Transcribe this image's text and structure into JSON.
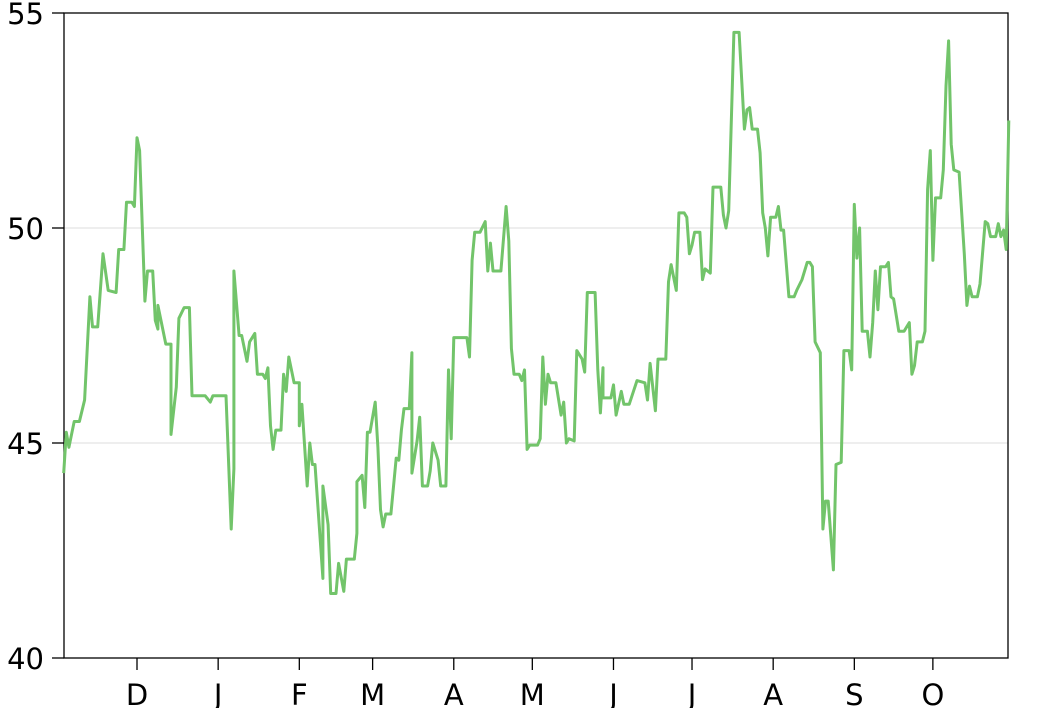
{
  "chart_data": {
    "type": "line",
    "title": "",
    "xlabel": "",
    "ylabel": "",
    "ylim": [
      40,
      55
    ],
    "yticks": [
      "40",
      "45",
      "50",
      "55"
    ],
    "xticks": [
      "D",
      "J",
      "F",
      "M",
      "A",
      "M",
      "J",
      "J",
      "A",
      "S",
      "O"
    ],
    "grid": "horizontal, light gray, at 45 and 50",
    "line_color": "#72c46a",
    "series": [
      {
        "points": [
          [
            "11-03",
            44.3
          ],
          [
            "11-04",
            45.25
          ],
          [
            "11-05",
            44.9
          ],
          [
            "11-07",
            45.5
          ],
          [
            "11-09",
            45.5
          ],
          [
            "11-11",
            46.0
          ],
          [
            "11-13",
            48.4
          ],
          [
            "11-14",
            47.7
          ],
          [
            "11-16",
            47.7
          ],
          [
            "11-18",
            49.4
          ],
          [
            "11-20",
            48.55
          ],
          [
            "11-23",
            48.5
          ],
          [
            "11-24",
            49.5
          ],
          [
            "11-26",
            49.5
          ],
          [
            "11-27",
            50.6
          ],
          [
            "11-29",
            50.6
          ],
          [
            "11-30",
            50.5
          ],
          [
            "12-01",
            52.1
          ],
          [
            "12-02",
            51.8
          ],
          [
            "12-04",
            48.3
          ],
          [
            "12-05",
            49.0
          ],
          [
            "12-07",
            49.0
          ],
          [
            "12-08",
            47.85
          ],
          [
            "12-09",
            47.65
          ],
          [
            "12-09",
            48.2
          ],
          [
            "12-12",
            47.3
          ],
          [
            "12-14",
            47.3
          ],
          [
            "12-14",
            45.2
          ],
          [
            "12-16",
            46.3
          ],
          [
            "12-17",
            47.9
          ],
          [
            "12-19",
            48.15
          ],
          [
            "12-21",
            48.15
          ],
          [
            "12-22",
            46.1
          ],
          [
            "12-27",
            46.1
          ],
          [
            "12-29",
            45.95
          ],
          [
            "12-30",
            46.1
          ],
          [
            "01-04",
            46.1
          ],
          [
            "01-06",
            43.0
          ],
          [
            "01-07",
            44.4
          ],
          [
            "01-07",
            49.0
          ],
          [
            "01-09",
            47.5
          ],
          [
            "01-10",
            47.5
          ],
          [
            "01-12",
            46.9
          ],
          [
            "01-13",
            47.35
          ],
          [
            "01-15",
            47.55
          ],
          [
            "01-16",
            46.6
          ],
          [
            "01-18",
            46.6
          ],
          [
            "01-19",
            46.5
          ],
          [
            "01-20",
            46.75
          ],
          [
            "01-21",
            45.4
          ],
          [
            "01-22",
            44.85
          ],
          [
            "01-23",
            45.3
          ],
          [
            "01-25",
            45.3
          ],
          [
            "01-26",
            46.6
          ],
          [
            "01-27",
            46.2
          ],
          [
            "01-28",
            47.0
          ],
          [
            "01-30",
            46.4
          ],
          [
            "02-01",
            46.4
          ],
          [
            "02-01",
            45.4
          ],
          [
            "02-02",
            45.9
          ],
          [
            "02-04",
            44.0
          ],
          [
            "02-05",
            45.0
          ],
          [
            "02-06",
            44.5
          ],
          [
            "02-07",
            44.5
          ],
          [
            "02-10",
            41.85
          ],
          [
            "02-10",
            44.0
          ],
          [
            "02-12",
            43.1
          ],
          [
            "02-13",
            41.5
          ],
          [
            "02-15",
            41.5
          ],
          [
            "02-16",
            42.2
          ],
          [
            "02-18",
            41.55
          ],
          [
            "02-19",
            42.3
          ],
          [
            "02-22",
            42.3
          ],
          [
            "02-23",
            42.9
          ],
          [
            "02-23",
            44.1
          ],
          [
            "02-25",
            44.25
          ],
          [
            "02-26",
            43.5
          ],
          [
            "02-27",
            45.25
          ],
          [
            "02-28",
            45.25
          ],
          [
            "03-02",
            45.95
          ],
          [
            "03-03",
            44.9
          ],
          [
            "03-04",
            43.45
          ],
          [
            "03-05",
            43.05
          ],
          [
            "03-06",
            43.35
          ],
          [
            "03-08",
            43.35
          ],
          [
            "03-10",
            44.65
          ],
          [
            "03-11",
            44.6
          ],
          [
            "03-12",
            45.3
          ],
          [
            "03-13",
            45.8
          ],
          [
            "03-15",
            45.8
          ],
          [
            "03-16",
            47.1
          ],
          [
            "03-16",
            44.3
          ],
          [
            "03-18",
            45.05
          ],
          [
            "03-19",
            45.6
          ],
          [
            "03-20",
            44.0
          ],
          [
            "03-22",
            44.0
          ],
          [
            "03-23",
            44.35
          ],
          [
            "03-24",
            45.0
          ],
          [
            "03-26",
            44.6
          ],
          [
            "03-27",
            44.0
          ],
          [
            "03-29",
            44.0
          ],
          [
            "03-30",
            46.7
          ],
          [
            "03-31",
            45.1
          ],
          [
            "04-01",
            47.45
          ],
          [
            "04-06",
            47.45
          ],
          [
            "04-07",
            47.0
          ],
          [
            "04-08",
            49.25
          ],
          [
            "04-09",
            49.9
          ],
          [
            "04-11",
            49.9
          ],
          [
            "04-13",
            50.15
          ],
          [
            "04-14",
            49.0
          ],
          [
            "04-15",
            49.65
          ],
          [
            "04-16",
            49.0
          ],
          [
            "04-19",
            49.0
          ],
          [
            "04-21",
            50.5
          ],
          [
            "04-22",
            49.7
          ],
          [
            "04-23",
            47.2
          ],
          [
            "04-24",
            46.6
          ],
          [
            "04-26",
            46.6
          ],
          [
            "04-27",
            46.45
          ],
          [
            "04-28",
            46.7
          ],
          [
            "04-29",
            44.85
          ],
          [
            "04-30",
            44.95
          ],
          [
            "05-03",
            44.95
          ],
          [
            "05-04",
            45.1
          ],
          [
            "05-05",
            47.0
          ],
          [
            "05-06",
            45.9
          ],
          [
            "05-07",
            46.6
          ],
          [
            "05-08",
            46.4
          ],
          [
            "05-10",
            46.4
          ],
          [
            "05-12",
            45.65
          ],
          [
            "05-13",
            45.95
          ],
          [
            "05-14",
            45.0
          ],
          [
            "05-15",
            45.1
          ],
          [
            "05-17",
            45.05
          ],
          [
            "05-18",
            47.15
          ],
          [
            "05-20",
            46.95
          ],
          [
            "05-21",
            46.65
          ],
          [
            "05-22",
            48.5
          ],
          [
            "05-25",
            48.5
          ],
          [
            "05-26",
            46.7
          ],
          [
            "05-27",
            45.7
          ],
          [
            "05-28",
            46.75
          ],
          [
            "05-28",
            46.05
          ],
          [
            "05-31",
            46.05
          ],
          [
            "06-01",
            46.35
          ],
          [
            "06-02",
            45.65
          ],
          [
            "06-04",
            46.2
          ],
          [
            "06-05",
            45.9
          ],
          [
            "06-07",
            45.9
          ],
          [
            "06-10",
            46.45
          ],
          [
            "06-13",
            46.4
          ],
          [
            "06-14",
            46.0
          ],
          [
            "06-15",
            46.85
          ],
          [
            "06-17",
            45.75
          ],
          [
            "06-18",
            46.95
          ],
          [
            "06-21",
            46.95
          ],
          [
            "06-22",
            48.75
          ],
          [
            "06-23",
            49.15
          ],
          [
            "06-25",
            48.55
          ],
          [
            "06-26",
            50.35
          ],
          [
            "06-28",
            50.35
          ],
          [
            "06-29",
            50.25
          ],
          [
            "06-30",
            49.4
          ],
          [
            "07-01",
            49.6
          ],
          [
            "07-02",
            49.9
          ],
          [
            "07-04",
            49.9
          ],
          [
            "07-05",
            48.8
          ],
          [
            "07-06",
            49.05
          ],
          [
            "07-08",
            48.95
          ],
          [
            "07-09",
            50.95
          ],
          [
            "07-12",
            50.95
          ],
          [
            "07-13",
            50.3
          ],
          [
            "07-14",
            50.0
          ],
          [
            "07-15",
            50.4
          ],
          [
            "07-17",
            54.55
          ],
          [
            "07-19",
            54.55
          ],
          [
            "07-21",
            52.3
          ],
          [
            "07-22",
            52.75
          ],
          [
            "07-23",
            52.8
          ],
          [
            "07-24",
            52.3
          ],
          [
            "07-26",
            52.3
          ],
          [
            "07-27",
            51.75
          ],
          [
            "07-28",
            50.35
          ],
          [
            "07-29",
            50.0
          ],
          [
            "07-30",
            49.35
          ],
          [
            "07-31",
            50.25
          ],
          [
            "08-02",
            50.25
          ],
          [
            "08-03",
            50.5
          ],
          [
            "08-04",
            49.95
          ],
          [
            "08-05",
            49.95
          ],
          [
            "08-07",
            48.4
          ],
          [
            "08-09",
            48.4
          ],
          [
            "08-10",
            48.55
          ],
          [
            "08-12",
            48.8
          ],
          [
            "08-14",
            49.2
          ],
          [
            "08-15",
            49.2
          ],
          [
            "08-16",
            49.1
          ],
          [
            "08-17",
            47.35
          ],
          [
            "08-19",
            47.1
          ],
          [
            "08-20",
            43.0
          ],
          [
            "08-21",
            43.65
          ],
          [
            "08-22",
            43.65
          ],
          [
            "08-24",
            42.05
          ],
          [
            "08-25",
            44.5
          ],
          [
            "08-27",
            44.55
          ],
          [
            "08-28",
            47.15
          ],
          [
            "08-30",
            47.15
          ],
          [
            "08-31",
            46.7
          ],
          [
            "09-01",
            50.55
          ],
          [
            "09-02",
            49.3
          ],
          [
            "09-03",
            50.0
          ],
          [
            "09-04",
            47.6
          ],
          [
            "09-06",
            47.6
          ],
          [
            "09-07",
            47.0
          ],
          [
            "09-08",
            47.8
          ],
          [
            "09-09",
            49.0
          ],
          [
            "09-10",
            48.1
          ],
          [
            "09-11",
            49.1
          ],
          [
            "09-13",
            49.1
          ],
          [
            "09-14",
            49.2
          ],
          [
            "09-15",
            48.4
          ],
          [
            "09-16",
            48.35
          ],
          [
            "09-18",
            47.6
          ],
          [
            "09-20",
            47.6
          ],
          [
            "09-22",
            47.8
          ],
          [
            "09-23",
            46.6
          ],
          [
            "09-24",
            46.8
          ],
          [
            "09-25",
            47.35
          ],
          [
            "09-27",
            47.35
          ],
          [
            "09-28",
            47.6
          ],
          [
            "09-29",
            50.9
          ],
          [
            "09-30",
            51.8
          ],
          [
            "10-01",
            49.25
          ],
          [
            "10-02",
            50.7
          ],
          [
            "10-04",
            50.7
          ],
          [
            "10-05",
            51.35
          ],
          [
            "10-06",
            53.3
          ],
          [
            "10-07",
            54.35
          ],
          [
            "10-08",
            51.95
          ],
          [
            "10-09",
            51.35
          ],
          [
            "10-11",
            51.3
          ],
          [
            "10-13",
            49.4
          ],
          [
            "10-14",
            48.2
          ],
          [
            "10-15",
            48.65
          ],
          [
            "10-16",
            48.4
          ],
          [
            "10-18",
            48.4
          ],
          [
            "10-19",
            48.7
          ],
          [
            "10-21",
            50.15
          ],
          [
            "10-22",
            50.1
          ],
          [
            "10-23",
            49.8
          ],
          [
            "10-25",
            49.8
          ],
          [
            "10-26",
            50.1
          ],
          [
            "10-27",
            49.8
          ],
          [
            "10-28",
            49.95
          ],
          [
            "10-29",
            49.5
          ],
          [
            "10-30",
            52.5
          ]
        ]
      }
    ]
  }
}
